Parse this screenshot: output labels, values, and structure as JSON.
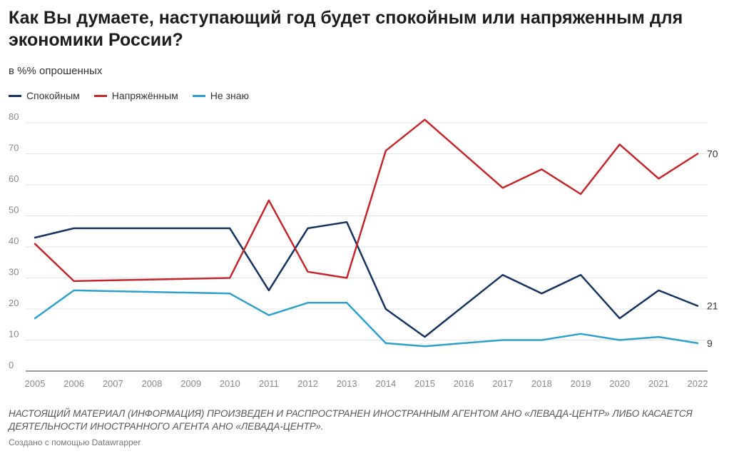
{
  "header": {
    "title": "Как Вы думаете, наступающий год будет спокойным или напряженным для экономики России?",
    "subtitle": "в %% опрошенных"
  },
  "footer": {
    "notes": "НАСТОЯЩИЙ МАТЕРИАЛ (ИНФОРМАЦИЯ) ПРОИЗВЕДЕН И РАСПРОСТРАНЕН ИНОСТРАННЫМ АГЕНТОМ АНО «ЛЕВАДА-ЦЕНТР» ЛИБО КАСАЕТСЯ ДЕЯТЕЛЬНОСТИ ИНОСТРАННОГО АГЕНТА АНО «ЛЕВАДА-ЦЕНТР».",
    "credit": "Создано с помощью Datawrapper"
  },
  "chart_data": {
    "type": "line",
    "title": "Как Вы думаете, наступающий год будет спокойным или напряженным для экономики России?",
    "ylabel": "",
    "xlabel": "",
    "ylim": [
      0,
      80
    ],
    "yticks": [
      0,
      10,
      20,
      30,
      40,
      50,
      60,
      70,
      80
    ],
    "grid": true,
    "legend": "top-left",
    "x": [
      2005,
      2006,
      2010,
      2011,
      2012,
      2013,
      2014,
      2015,
      2017,
      2018,
      2019,
      2020,
      2021,
      2022
    ],
    "xticks": [
      2005,
      2006,
      2007,
      2008,
      2009,
      2010,
      2011,
      2012,
      2013,
      2014,
      2015,
      2016,
      2017,
      2018,
      2019,
      2020,
      2021,
      2022
    ],
    "series": [
      {
        "name": "Спокойным",
        "color": "#15335e",
        "values": [
          43,
          46,
          46,
          26,
          46,
          48,
          20,
          11,
          31,
          25,
          31,
          17,
          26,
          21
        ],
        "end_label": "21"
      },
      {
        "name": "Напряжённым",
        "color": "#c1272d",
        "values": [
          41,
          29,
          30,
          55,
          32,
          30,
          71,
          81,
          59,
          65,
          57,
          73,
          62,
          70
        ],
        "end_label": "70"
      },
      {
        "name": "Не знаю",
        "color": "#2ea0c9",
        "values": [
          17,
          26,
          25,
          18,
          22,
          22,
          9,
          8,
          10,
          10,
          12,
          10,
          11,
          9
        ],
        "end_label": "9"
      }
    ]
  }
}
